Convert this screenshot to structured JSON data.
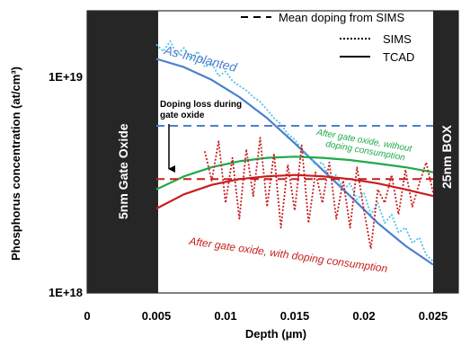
{
  "chart_data": {
    "type": "line",
    "xlabel": "Depth (µm)",
    "ylabel": "Phosphorus concentration (at/cm³)",
    "xlim": [
      0,
      0.025
    ],
    "ylim": [
      1e+18,
      2e+19
    ],
    "yscale": "log",
    "x_ticks": [
      "0",
      "0.005",
      "0.01",
      "0.015",
      "0.02",
      "0.025"
    ],
    "y_ticks": [
      "1E+18",
      "1E+19"
    ],
    "colors": {
      "blue": "#4a7fcf",
      "cyan": "#4fc3e8",
      "green": "#1faa4a",
      "red": "#c81e1e",
      "band": "#262626"
    },
    "legend": {
      "placement": "top-right",
      "entries": [
        {
          "label": "Mean doping from SIMS",
          "style": "dashed"
        },
        {
          "label": "SIMS",
          "style": "dotted"
        },
        {
          "label": "TCAD",
          "style": "solid"
        }
      ]
    },
    "regions": [
      {
        "label": "5nm Gate Oxide",
        "x_range": [
          0,
          0.005
        ]
      },
      {
        "label": "25nm BOX",
        "x_range": [
          0.025,
          0.0266
        ]
      }
    ],
    "annotations": {
      "as_implanted": "As-Implanted",
      "no_consumption": [
        "After gate oxide, without",
        "doping consumption"
      ],
      "with_consumption": "After gate oxide, with doping consumption",
      "doping_loss": [
        "Doping loss during",
        "gate oxide"
      ]
    },
    "series": [
      {
        "color": "blue",
        "style": "solid",
        "x": [
          0.005,
          0.007,
          0.009,
          0.011,
          0.013,
          0.015,
          0.017,
          0.019,
          0.021,
          0.023,
          0.025
        ],
        "y": [
          1.2e+19,
          1.1e+19,
          9.6e+18,
          8e+18,
          6.4e+18,
          4.9e+18,
          3.7e+18,
          2.8e+18,
          2.1e+18,
          1.65e+18,
          1.35e+18
        ]
      },
      {
        "color": "cyan",
        "style": "dotted",
        "x": [
          0.005,
          0.0055,
          0.006,
          0.0065,
          0.007,
          0.0075,
          0.008,
          0.0085,
          0.009,
          0.0095,
          0.01,
          0.0105,
          0.011,
          0.0115,
          0.012,
          0.0125,
          0.013,
          0.0135,
          0.014,
          0.0145,
          0.015,
          0.0155,
          0.016,
          0.0165,
          0.017,
          0.0175,
          0.018,
          0.0185,
          0.019,
          0.0195,
          0.02,
          0.0205,
          0.021,
          0.0215,
          0.022,
          0.0225,
          0.023,
          0.0235,
          0.024,
          0.0245,
          0.025
        ],
        "y": [
          1.4e+19,
          1.3e+19,
          1.45e+19,
          1.25e+19,
          1.35e+19,
          1.2e+19,
          1.3e+19,
          1.1e+19,
          1.15e+19,
          1e+19,
          1.05e+19,
          9.5e+18,
          9e+18,
          8.6e+18,
          8e+18,
          7.6e+18,
          7e+18,
          6.4e+18,
          6e+18,
          5.4e+18,
          5.1e+18,
          4.6e+18,
          4.3e+18,
          3.9e+18,
          4e+18,
          3.4e+18,
          3.5e+18,
          3e+18,
          3.2e+18,
          2.7e+18,
          2.9e+18,
          2.3e+18,
          2.6e+18,
          2.1e+18,
          2.3e+18,
          1.9e+18,
          2e+18,
          1.7e+18,
          1.8e+18,
          1.5e+18,
          1.4e+18
        ]
      },
      {
        "color": "blue",
        "style": "dashed",
        "x": [
          0.005,
          0.025
        ],
        "y": [
          5.9e+18,
          5.9e+18
        ]
      },
      {
        "color": "green",
        "style": "solid",
        "x": [
          0.005,
          0.007,
          0.009,
          0.011,
          0.013,
          0.015,
          0.017,
          0.019,
          0.021,
          0.023,
          0.025
        ],
        "y": [
          3e+18,
          3.45e+18,
          3.8e+18,
          4.05e+18,
          4.2e+18,
          4.25e+18,
          4.2e+18,
          4.1e+18,
          3.95e+18,
          3.8e+18,
          3.6e+18
        ]
      },
      {
        "color": "red",
        "style": "solid",
        "x": [
          0.005,
          0.007,
          0.009,
          0.011,
          0.013,
          0.015,
          0.017,
          0.019,
          0.021,
          0.023,
          0.025
        ],
        "y": [
          2.45e+18,
          2.85e+18,
          3.15e+18,
          3.35e+18,
          3.45e+18,
          3.5e+18,
          3.45e+18,
          3.35e+18,
          3.2e+18,
          3e+18,
          2.8e+18
        ]
      },
      {
        "color": "red",
        "style": "dashed",
        "x": [
          0.005,
          0.025
        ],
        "y": [
          3.35e+18,
          3.35e+18
        ]
      },
      {
        "color": "red",
        "style": "dotted",
        "x": [
          0.0085,
          0.009,
          0.0095,
          0.01,
          0.0105,
          0.011,
          0.0115,
          0.012,
          0.0125,
          0.013,
          0.0135,
          0.014,
          0.0145,
          0.015,
          0.0155,
          0.016,
          0.0165,
          0.017,
          0.0175,
          0.018,
          0.0185,
          0.019,
          0.0195,
          0.02,
          0.0205,
          0.021,
          0.0215,
          0.022,
          0.0225,
          0.023,
          0.0235,
          0.024,
          0.0245,
          0.025
        ],
        "y": [
          4.5e+18,
          3.3e+18,
          5e+18,
          2.6e+18,
          4.2e+18,
          2.2e+18,
          4.6e+18,
          2.8e+18,
          5.2e+18,
          2.5e+18,
          4.4e+18,
          2e+18,
          3.9e+18,
          2.4e+18,
          4.8e+18,
          2.1e+18,
          3.6e+18,
          2.6e+18,
          4e+18,
          2.2e+18,
          3.3e+18,
          2e+18,
          3.8e+18,
          2.4e+18,
          1.6e+18,
          3e+18,
          2.6e+18,
          3.5e+18,
          2.3e+18,
          3.7e+18,
          2.5e+18,
          3.2e+18,
          4e+18,
          2.9e+18
        ]
      }
    ]
  }
}
